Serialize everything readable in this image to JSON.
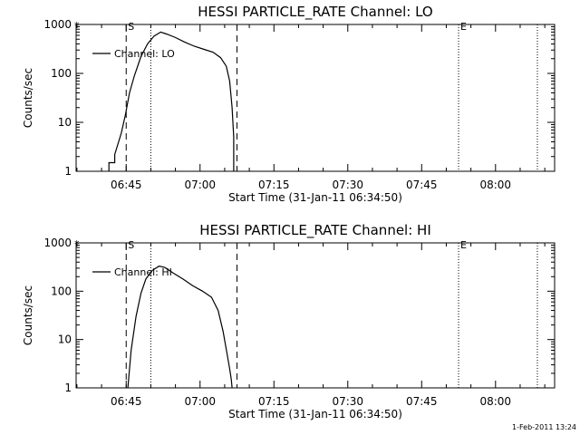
{
  "footer": "1-Feb-2011 13:24",
  "chart_data": [
    {
      "type": "line",
      "title": "HESSI PARTICLE_RATE Channel: LO",
      "xlabel": "Start Time (31-Jan-11 06:34:50)",
      "ylabel": "Counts/sec",
      "yscale": "log",
      "xlim": [
        "06:34:50",
        "08:12:00"
      ],
      "ylim": [
        1,
        1000
      ],
      "x_ticks": [
        "06:45",
        "07:00",
        "07:15",
        "07:30",
        "07:45",
        "08:00"
      ],
      "y_ticks": [
        {
          "value": 1,
          "label": "1"
        },
        {
          "value": 10,
          "label": "10"
        },
        {
          "value": 100,
          "label": "100"
        },
        {
          "value": 1000,
          "label": "1000"
        }
      ],
      "legend": "top-left",
      "series": [
        {
          "name": "Channel: LO",
          "x": [
            "06:41:30",
            "06:41:30",
            "06:42:40",
            "06:42:40",
            "06:44:00",
            "06:44:50",
            "06:45:40",
            "06:46:40",
            "06:48:00",
            "06:49:20",
            "06:50:40",
            "06:52:00",
            "06:53:10",
            "06:54:50",
            "06:56:50",
            "06:58:50",
            "07:00:50",
            "07:02:40",
            "07:04:10",
            "07:05:20",
            "07:06:00",
            "07:06:30",
            "07:06:50",
            "07:06:50"
          ],
          "y": [
            1,
            1.5,
            1.5,
            2.2,
            6,
            14,
            40,
            90,
            220,
            400,
            580,
            700,
            640,
            550,
            440,
            360,
            310,
            270,
            210,
            140,
            70,
            20,
            5,
            1
          ]
        }
      ],
      "markers": [
        {
          "label": "S",
          "time": "06:45:00"
        },
        {
          "label": "E",
          "time": "07:52:30"
        }
      ],
      "dashed_lines": [
        "06:45:00",
        "07:07:30"
      ],
      "dotted_lines": [
        "06:50:00",
        "07:52:30",
        "08:08:30"
      ]
    },
    {
      "type": "line",
      "title": "HESSI PARTICLE_RATE Channel: HI",
      "xlabel": "Start Time (31-Jan-11 06:34:50)",
      "ylabel": "Counts/sec",
      "yscale": "log",
      "xlim": [
        "06:34:50",
        "08:12:00"
      ],
      "ylim": [
        1,
        1000
      ],
      "x_ticks": [
        "06:45",
        "07:00",
        "07:15",
        "07:30",
        "07:45",
        "08:00"
      ],
      "y_ticks": [
        {
          "value": 1,
          "label": "1"
        },
        {
          "value": 10,
          "label": "10"
        },
        {
          "value": 100,
          "label": "100"
        },
        {
          "value": 1000,
          "label": "1000"
        }
      ],
      "legend": "top-left",
      "series": [
        {
          "name": "Channel: HI",
          "x": [
            "06:45:20",
            "06:46:00",
            "06:47:00",
            "06:48:00",
            "06:49:00",
            "06:50:20",
            "06:51:40",
            "06:52:50",
            "06:54:30",
            "06:56:30",
            "06:58:30",
            "07:00:30",
            "07:02:20",
            "07:03:40",
            "07:04:40",
            "07:05:30",
            "07:06:00",
            "07:06:20",
            "07:06:30"
          ],
          "y": [
            1,
            6,
            30,
            90,
            180,
            270,
            330,
            310,
            240,
            180,
            130,
            100,
            75,
            40,
            15,
            5,
            2.5,
            1.5,
            1
          ]
        }
      ],
      "markers": [
        {
          "label": "S",
          "time": "06:45:00"
        },
        {
          "label": "E",
          "time": "07:52:30"
        }
      ],
      "dashed_lines": [
        "06:45:00",
        "07:07:30"
      ],
      "dotted_lines": [
        "06:50:00",
        "07:52:30",
        "08:08:30"
      ]
    }
  ]
}
